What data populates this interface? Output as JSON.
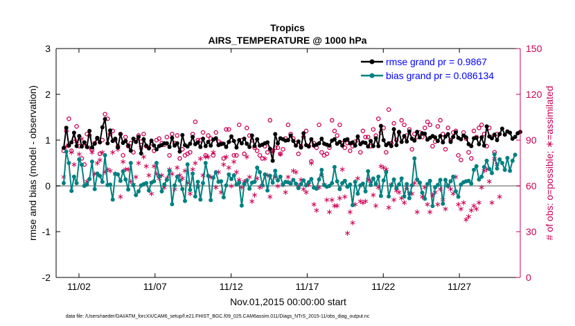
{
  "chart_data": {
    "type": "line",
    "title": "Tropics",
    "subtitle": "AIRS_TEMPERATURE @ 1000 hPa",
    "xlabel": "Nov.01,2015 00:00:00 start",
    "ylabel_left": "rmse and bias (model - observation)",
    "ylabel_right": "# of obs: o=possible; ∗=assimilated",
    "ylim_left": [
      -2,
      3
    ],
    "ylim_right": [
      0,
      150
    ],
    "xlim": [
      0.5,
      31
    ],
    "left_ticks": [
      "-2",
      "-1",
      "0",
      "1",
      "2",
      "3"
    ],
    "right_ticks": [
      "0",
      "30",
      "60",
      "90",
      "120",
      "150"
    ],
    "x_ticks": [
      {
        "day": 2,
        "label": "11/02"
      },
      {
        "day": 7,
        "label": "11/07"
      },
      {
        "day": 12,
        "label": "11/12"
      },
      {
        "day": 17,
        "label": "11/17"
      },
      {
        "day": 22,
        "label": "11/22"
      },
      {
        "day": 27,
        "label": "11/27"
      }
    ],
    "footnote": "data file: /Users/raeder/DAI/ATM_forcXX/CAM6_setup/f.e21.FHIST_BGC.f09_025.CAM6assim.011/Diags_NTrS_2015-11/obs_diag_output.nc",
    "colors": {
      "rmse": "#000000",
      "bias": "#008080",
      "obs": "#cc0055",
      "zero": "#aaaaaa"
    },
    "series": [
      {
        "name": "rmse grand pr = 0.9867",
        "values": [
          0.83,
          1.27,
          0.88,
          0.95,
          1.16,
          0.87,
          1.09,
          0.86,
          0.95,
          0.85,
          1.2,
          0.84,
          0.92,
          1.05,
          0.95,
          1.28,
          1.46,
          0.93,
          1.21,
          0.98,
          1.03,
          0.84,
          1.13,
          0.94,
          0.98,
          0.88,
          0.77,
          1.03,
          0.96,
          1.07,
          0.71,
          1.02,
          0.88,
          0.82,
          0.99,
          0.88,
          0.8,
          0.87,
          0.89,
          0.93,
          0.93,
          0.85,
          1.05,
          0.88,
          0.93,
          0.75,
          1.11,
          0.89,
          0.86,
          0.92,
          1.07,
          0.91,
          0.95,
          0.85,
          1.03,
          0.87,
          0.96,
          0.88,
          1.01,
          1.04,
          0.89,
          0.91,
          0.92,
          0.85,
          0.96,
          1.08,
          0.98,
          0.84,
          1.0,
          0.93,
          1.03,
          0.92,
          0.85,
          1.1,
          0.87,
          1.02,
          0.88,
          0.9,
          0.93,
          0.95,
          0.81,
          0.55,
          1.13,
          0.93,
          1.04,
          1.02,
          0.99,
          1.0,
          1.1,
          0.98,
          0.88,
          0.97,
          0.84,
          1.15,
          0.89,
          0.86,
          1.02,
          0.88,
          0.9,
          0.93,
          1.03,
          0.92,
          0.9,
          0.88,
          0.99,
          1.02,
          0.92,
          0.96,
          0.88,
          1.0,
          1.02,
          0.93,
          0.95,
          0.88,
          1.08,
          0.91,
          0.95,
          0.94,
          0.86,
          0.98,
          0.87,
          1.04,
          0.87,
          1.31,
          1.0,
          0.89,
          0.93,
          0.87,
          1.24,
          0.89,
          1.18,
          0.96,
          1.09,
          0.97,
          1.19,
          1.03,
          0.99,
          1.18,
          1.06,
          1.15,
          1.14,
          1.01,
          1.05,
          1.09,
          1.06,
          0.98,
          1.09,
          0.95,
          1.08,
          1.13,
          0.96,
          1.07,
          1.17,
          1.05,
          1.02,
          1.1,
          1.06,
          0.91,
          0.87,
          1.04,
          1.05,
          0.91,
          1.06,
          0.88,
          1.3,
          1.08,
          1.04,
          1.12,
          1.0,
          1.13,
          1.25,
          1.12,
          1.19,
          1.16,
          1.03,
          1.07,
          1.15,
          1.18
        ]
      },
      {
        "name": "bias grand pr = 0.086134",
        "values": [
          0.06,
          0.75,
          0.5,
          -0.11,
          0.2,
          0.06,
          0.58,
          0.46,
          0.0,
          0.03,
          0.15,
          0.53,
          -0.07,
          0.27,
          0.22,
          0.09,
          0.67,
          0.02,
          0.03,
          -0.3,
          0.26,
          0.25,
          0.11,
          0.32,
          0.14,
          -0.08,
          0.5,
          0.02,
          -0.2,
          -0.12,
          0.01,
          0.04,
          0.06,
          -0.1,
          0.07,
          0.1,
          0.5,
          0.21,
          -0.12,
          0.03,
          0.13,
          0.33,
          -0.4,
          0.01,
          0.2,
          0.12,
          -0.07,
          -0.33,
          0.47,
          -0.09,
          0.27,
          -0.23,
          0.09,
          -0.3,
          0.06,
          0.5,
          0.22,
          -0.31,
          0.18,
          0.3,
          0.09,
          0.1,
          -0.25,
          0.01,
          0.25,
          0.15,
          0.23,
          0.03,
          0.07,
          -0.43,
          0.04,
          0.12,
          -0.06,
          0.07,
          0.09,
          0.4,
          0.3,
          0.02,
          0.25,
          -0.1,
          0.22,
          0.07,
          0.33,
          0.12,
          0.2,
          0.03,
          0.09,
          0.08,
          0.05,
          0.13,
          0.05,
          -0.05,
          0.04,
          0.12,
          0.01,
          0.08,
          0.15,
          -0.04,
          -0.06,
          0.14,
          0.35,
          0.02,
          -0.02,
          0.0,
          0.06,
          0.41,
          0.1,
          -0.07,
          0.06,
          0.11,
          -0.02,
          0.03,
          -0.42,
          0.09,
          -0.17,
          0.01,
          0.05,
          -0.12,
          0.32,
          0.02,
          0.16,
          0.04,
          0.2,
          -0.22,
          0.12,
          0.3,
          -0.23,
          0.01,
          0.14,
          -0.05,
          0.03,
          0.16,
          -0.23,
          0.04,
          -0.27,
          0.01,
          0.6,
          0.14,
          0.07,
          -0.15,
          -0.28,
          0.04,
          0.11,
          -0.44,
          -0.03,
          0.02,
          0.13,
          -0.39,
          0.13,
          0.0,
          0.1,
          0.2,
          -0.12,
          -0.24,
          0.03,
          0.08,
          0.1,
          0.11,
          0.05,
          0.35,
          0.43,
          0.14,
          0.2,
          0.41,
          0.55,
          0.37,
          0.28,
          0.69,
          0.38,
          0.58,
          0.5,
          0.35,
          0.61,
          0.33,
          0.55,
          0.68
        ]
      }
    ],
    "obs_possible": [
      83,
      96,
      104,
      83,
      91,
      99,
      86,
      78,
      74,
      94,
      93,
      84,
      88,
      91,
      81,
      90,
      107,
      104,
      94,
      96,
      90,
      86,
      94,
      80,
      92,
      86,
      88,
      82,
      90,
      93,
      89,
      94,
      86,
      85,
      88,
      83,
      90,
      91,
      88,
      87,
      92,
      80,
      94,
      88,
      93,
      78,
      84,
      80,
      81,
      82,
      94,
      102,
      90,
      90,
      95,
      80,
      93,
      91,
      80,
      95,
      89,
      88,
      78,
      97,
      97,
      90,
      80,
      80,
      100,
      90,
      81,
      98,
      93,
      90,
      85,
      83,
      80,
      78,
      86,
      82,
      103,
      83,
      85,
      85,
      81,
      84,
      91,
      100,
      94,
      91,
      88,
      81,
      86,
      92,
      96,
      86,
      76,
      88,
      85,
      100,
      82,
      80,
      81,
      85,
      103,
      96,
      93,
      100,
      88,
      85,
      88,
      83,
      86,
      89,
      90,
      82,
      96,
      92,
      92,
      86,
      97,
      93,
      104,
      95,
      98,
      82,
      110,
      88,
      101,
      90,
      95,
      103,
      100,
      93,
      97,
      84,
      94,
      92,
      95,
      92,
      98,
      102,
      100,
      86,
      89,
      99,
      103,
      94,
      84,
      98,
      90,
      95,
      96,
      80,
      77,
      95,
      91,
      82,
      78,
      96,
      92,
      98,
      100,
      94,
      86,
      98,
      92,
      82,
      94
    ],
    "obs_assimilated": [
      66,
      86,
      87,
      82,
      74,
      89,
      81,
      91,
      88,
      63,
      85,
      82,
      68,
      75,
      77,
      82,
      69,
      71,
      70,
      82,
      68,
      84,
      53,
      76,
      71,
      71,
      63,
      61,
      66,
      75,
      85,
      79,
      73,
      67,
      55,
      73,
      68,
      65,
      67,
      59,
      65,
      71,
      68,
      58,
      72,
      67,
      65,
      70,
      62,
      55,
      71,
      75,
      60,
      78,
      67,
      79,
      79,
      66,
      82,
      59,
      69,
      56,
      74,
      79,
      72,
      60,
      76,
      69,
      64,
      59,
      63,
      79,
      66,
      50,
      54,
      65,
      59,
      60,
      78,
      67,
      53,
      83,
      66,
      60,
      81,
      61,
      56,
      66,
      62,
      70,
      69,
      60,
      64,
      58,
      56,
      61,
      75,
      48,
      44,
      59,
      67,
      61,
      51,
      43,
      51,
      47,
      47,
      52,
      71,
      53,
      29,
      43,
      36,
      48,
      65,
      50,
      49,
      50,
      64,
      63,
      54,
      47,
      59,
      73,
      72,
      71,
      46,
      61,
      51,
      57,
      56,
      52,
      49,
      59,
      55,
      55,
      62,
      43,
      62,
      53,
      59,
      48,
      43,
      54,
      56,
      48,
      58,
      51,
      45,
      60,
      58,
      55,
      66,
      48,
      45,
      49,
      38,
      40,
      44,
      47,
      45,
      49,
      59,
      70,
      71,
      63,
      49,
      78,
      74,
      53
    ],
    "legend": [
      "rmse grand pr = 0.9867",
      "bias grand pr = 0.086134"
    ]
  }
}
